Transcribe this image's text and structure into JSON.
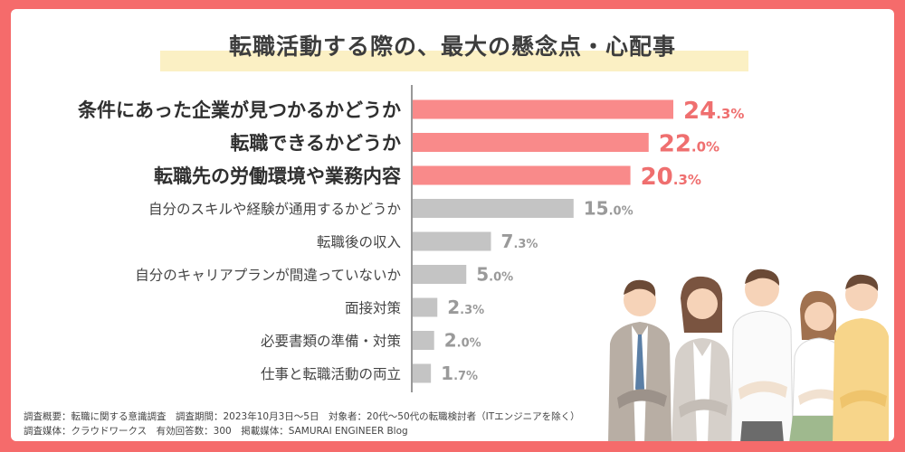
{
  "title": "転職活動する際の、最大の懸念点・心配事",
  "colors": {
    "background": "#f56b6b",
    "highlight_bar": "#f98a8a",
    "highlight_label": "#ef6f6f",
    "normal_bar": "#c4c4c4",
    "normal_label": "#9a9a9a"
  },
  "chart_data": {
    "type": "bar",
    "orientation": "horizontal",
    "title": "転職活動する際の、最大の懸念点・心配事",
    "unit": "%",
    "categories": [
      "条件にあった企業が見つかるかどうか",
      "転職できるかどうか",
      "転職先の労働環境や業務内容",
      "自分のスキルや経験が通用するかどうか",
      "転職後の収入",
      "自分のキャリアプランが間違っていないか",
      "面接対策",
      "必要書類の準備・対策",
      "仕事と転職活動の両立"
    ],
    "values": [
      24.3,
      22.0,
      20.3,
      15.0,
      7.3,
      5.0,
      2.3,
      2.0,
      1.7
    ],
    "highlighted": [
      true,
      true,
      true,
      false,
      false,
      false,
      false,
      false,
      false
    ],
    "xlim": [
      0,
      24.3
    ],
    "grid": false,
    "legend": "none"
  },
  "footnotes": [
    "調査概要：転職に関する意識調査　調査期間：2023年10月3日〜5日　対象者：20代〜50代の転職検討者（ITエンジニアを除く）",
    "調査媒体：クラウドワークス　有効回答数：300　掲載媒体：SAMURAI ENGINEER Blog"
  ]
}
